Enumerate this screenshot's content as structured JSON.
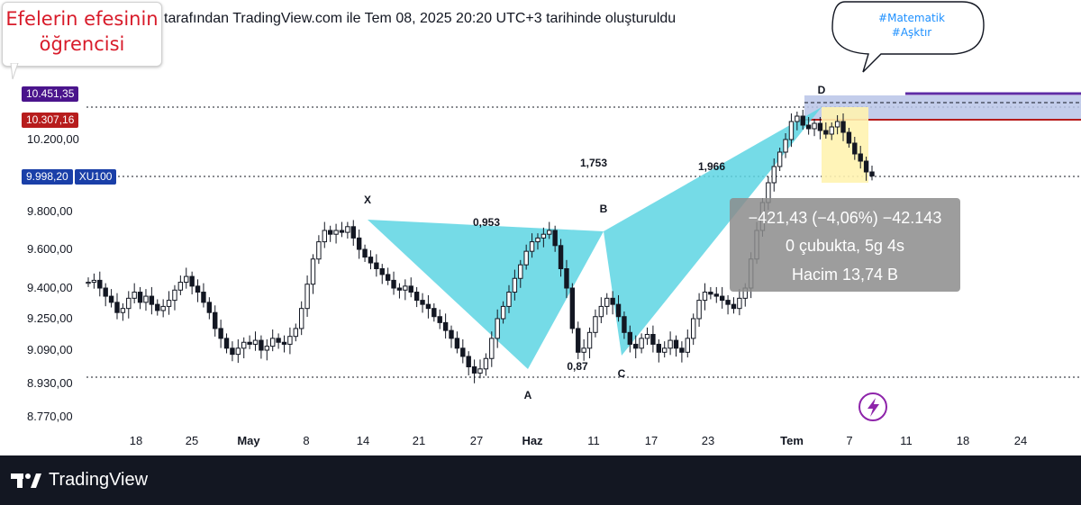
{
  "header": {
    "text": "tarafından TradingView.com ile Tem 08, 2025 20:20 UTC+3 tarihinde oluşturuldu"
  },
  "sticker": {
    "line1": "Efelerin efesinin",
    "line2": "öğrencisi"
  },
  "bubble": {
    "line1": "#Matematik",
    "line2": "#Aşktır"
  },
  "price_tags": {
    "top_value": "10.451,35",
    "top_color": "#4a148c",
    "red_value": "10.307,16",
    "red_color": "#b71c1c",
    "current_value": "9.998,20",
    "current_symbol": "XU100",
    "current_color": "#1a3fa8"
  },
  "stats_box": {
    "line1": "−421,43 (−4,06%) −42.143",
    "line2": "0 çubukta, 5g 4s",
    "line3": "Hacim 13,74 B"
  },
  "footer": {
    "brand": "TradingView"
  },
  "colors": {
    "up": "#131722",
    "down": "#131722",
    "pattern_fill": "#5dd5e3",
    "highlight_fill": "#fff3b0",
    "band_fill": "#b8c4e8",
    "purple_line": "#5e2ca5",
    "red_line": "#b71c1c",
    "icon_purple": "#8e24aa"
  },
  "chart_data": {
    "type": "candlestick",
    "title": "",
    "yticks": [
      "10.200,00",
      "9.800,00",
      "9.600,00",
      "9.400,00",
      "9.250,00",
      "9.090,00",
      "8.930,00",
      "8.770,00"
    ],
    "xticks": [
      "18",
      "25",
      "May",
      "8",
      "14",
      "21",
      "27",
      "Haz",
      "11",
      "17",
      "23",
      "Tem",
      "7",
      "11",
      "18",
      "24"
    ],
    "pattern_points": [
      {
        "label": "X",
        "date": "2025-05-14",
        "value": 9760
      },
      {
        "label": "A",
        "date": "2025-06-02",
        "value": 8950
      },
      {
        "label": "B",
        "date": "2025-06-12",
        "value": 9700
      },
      {
        "label": "C",
        "date": "2025-06-16",
        "value": 9050
      },
      {
        "label": "D",
        "date": "2025-07-03",
        "value": 10400
      }
    ],
    "ratios": [
      {
        "label": "0,953",
        "leg": "XB"
      },
      {
        "label": "0,87",
        "leg": "AC"
      },
      {
        "label": "1,753",
        "leg": "BD"
      },
      {
        "label": "1,966",
        "leg": "XD"
      }
    ],
    "levels": [
      {
        "name": "top",
        "value": 10451.35
      },
      {
        "name": "red",
        "value": 10307.16
      },
      {
        "name": "current",
        "value": 9998.2
      },
      {
        "name": "low",
        "value": 8930
      }
    ],
    "ohlc_close": [
      9430,
      9440,
      9400,
      9360,
      9330,
      9280,
      9300,
      9350,
      9380,
      9330,
      9360,
      9320,
      9290,
      9310,
      9340,
      9390,
      9430,
      9460,
      9410,
      9380,
      9330,
      9280,
      9200,
      9150,
      9100,
      9070,
      9100,
      9130,
      9120,
      9140,
      9090,
      9110,
      9150,
      9130,
      9120,
      9160,
      9200,
      9300,
      9420,
      9550,
      9640,
      9700,
      9680,
      9700,
      9690,
      9720,
      9660,
      9600,
      9560,
      9530,
      9500,
      9470,
      9440,
      9400,
      9390,
      9410,
      9380,
      9340,
      9320,
      9300,
      9260,
      9230,
      9190,
      9150,
      9100,
      9060,
      9010,
      8980,
      9000,
      9050,
      9150,
      9250,
      9310,
      9380,
      9450,
      9520,
      9590,
      9640,
      9660,
      9680,
      9700,
      9620,
      9500,
      9400,
      9200,
      9080,
      9100,
      9180,
      9260,
      9310,
      9350,
      9320,
      9260,
      9180,
      9120,
      9100,
      9150,
      9170,
      9120,
      9080,
      9100,
      9140,
      9100,
      9080,
      9150,
      9250,
      9340,
      9380,
      9370,
      9360,
      9340,
      9320,
      9300,
      9350,
      9400,
      9550,
      9700,
      9850,
      9960,
      10050,
      10130,
      10200,
      10300,
      10330,
      10280,
      10260,
      10290,
      10250,
      10230,
      10270,
      10300,
      10240,
      10180,
      10120,
      10080,
      10020,
      9998
    ]
  }
}
